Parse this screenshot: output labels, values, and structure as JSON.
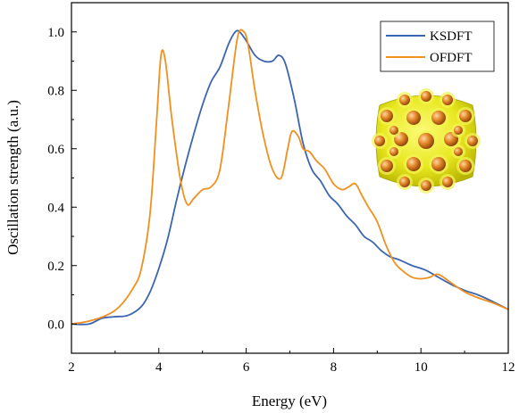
{
  "chart_data": {
    "type": "line",
    "xlabel": "Energy (eV)",
    "ylabel": "Oscillation strength (a.u.)",
    "xlim": [
      2,
      12
    ],
    "ylim": [
      -0.1,
      1.1
    ],
    "xticks": [
      2,
      4,
      6,
      8,
      10,
      12
    ],
    "yticks": [
      0.0,
      0.2,
      0.4,
      0.6,
      0.8,
      1.0
    ],
    "ytick_labels": [
      "0.0",
      "0.2",
      "0.4",
      "0.6",
      "0.8",
      "1.0"
    ],
    "grid": false,
    "legend": {
      "position": "top-right",
      "entries": [
        "KSDFT",
        "OFDFT"
      ]
    },
    "inset": "yellow cluster isosurface with orange atoms",
    "series": [
      {
        "name": "KSDFT",
        "color": "#3b65b0",
        "x": [
          2.0,
          2.4,
          2.7,
          3.0,
          3.3,
          3.6,
          3.8,
          4.0,
          4.2,
          4.4,
          4.6,
          4.8,
          5.0,
          5.2,
          5.4,
          5.6,
          5.75,
          5.85,
          6.0,
          6.2,
          6.4,
          6.6,
          6.75,
          6.9,
          7.1,
          7.3,
          7.5,
          7.7,
          7.9,
          8.1,
          8.3,
          8.5,
          8.7,
          8.9,
          9.1,
          9.3,
          9.5,
          9.8,
          10.1,
          10.4,
          10.7,
          11.0,
          11.3,
          11.6,
          12.0
        ],
        "y": [
          0.0,
          0.0,
          0.02,
          0.025,
          0.03,
          0.06,
          0.11,
          0.19,
          0.29,
          0.42,
          0.54,
          0.65,
          0.75,
          0.83,
          0.88,
          0.96,
          1.0,
          1.0,
          0.97,
          0.92,
          0.9,
          0.9,
          0.92,
          0.89,
          0.77,
          0.62,
          0.53,
          0.49,
          0.44,
          0.41,
          0.37,
          0.34,
          0.3,
          0.28,
          0.25,
          0.23,
          0.22,
          0.2,
          0.185,
          0.16,
          0.135,
          0.115,
          0.1,
          0.08,
          0.05
        ]
      },
      {
        "name": "OFDFT",
        "color": "#f0901e",
        "x": [
          2.0,
          2.4,
          2.8,
          3.1,
          3.4,
          3.6,
          3.8,
          3.95,
          4.05,
          4.15,
          4.3,
          4.5,
          4.65,
          4.8,
          5.0,
          5.2,
          5.4,
          5.6,
          5.8,
          5.95,
          6.05,
          6.2,
          6.4,
          6.6,
          6.8,
          6.95,
          7.05,
          7.2,
          7.3,
          7.45,
          7.6,
          7.8,
          8.0,
          8.2,
          8.35,
          8.5,
          8.65,
          8.8,
          9.0,
          9.2,
          9.4,
          9.6,
          9.8,
          10.0,
          10.2,
          10.4,
          10.7,
          11.0,
          11.3,
          11.6,
          12.0
        ],
        "y": [
          0.0,
          0.01,
          0.03,
          0.06,
          0.12,
          0.19,
          0.38,
          0.7,
          0.92,
          0.9,
          0.7,
          0.49,
          0.41,
          0.43,
          0.46,
          0.47,
          0.53,
          0.75,
          0.98,
          1.0,
          0.95,
          0.8,
          0.64,
          0.53,
          0.5,
          0.6,
          0.66,
          0.64,
          0.6,
          0.59,
          0.56,
          0.53,
          0.48,
          0.46,
          0.47,
          0.48,
          0.44,
          0.4,
          0.35,
          0.27,
          0.21,
          0.18,
          0.16,
          0.155,
          0.16,
          0.17,
          0.14,
          0.11,
          0.09,
          0.075,
          0.05
        ]
      }
    ]
  }
}
